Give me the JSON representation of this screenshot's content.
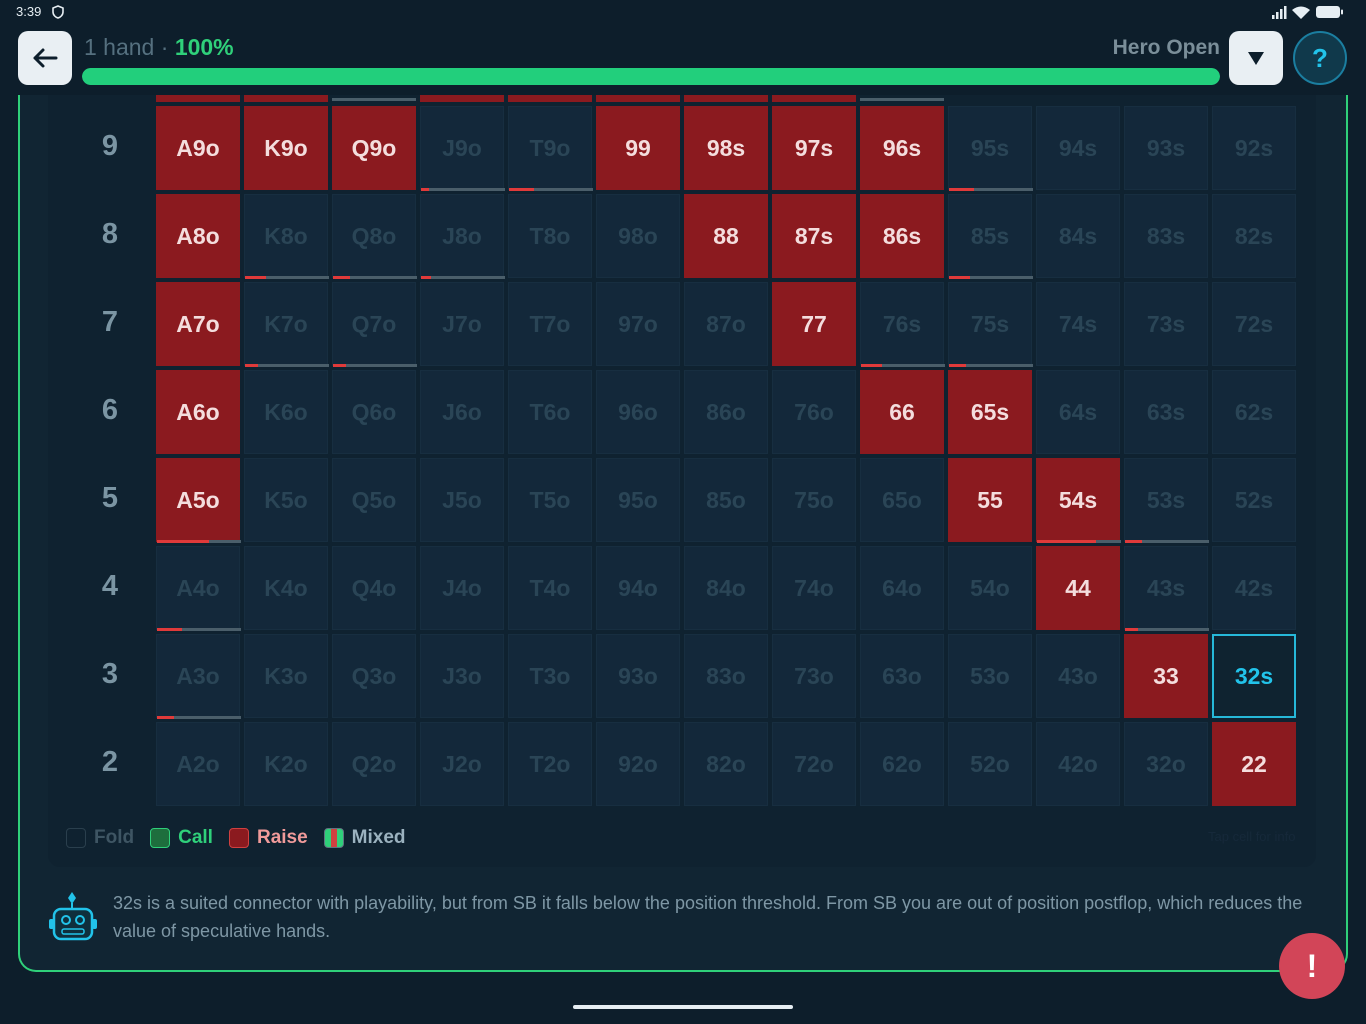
{
  "status_bar": {
    "time": "3:39",
    "icons": [
      "shield-icon",
      "signal-icon",
      "wifi-icon",
      "battery-icon"
    ]
  },
  "header": {
    "hand_count": "1 hand",
    "separator": " · ",
    "progress_label": "100%",
    "progress_value": 1.0,
    "mode": "Hero Open",
    "help_label": "?"
  },
  "grid": {
    "row_labels": [
      "9",
      "8",
      "7",
      "6",
      "5",
      "4",
      "3",
      "2"
    ],
    "rows": [
      [
        {
          "hand": "A9o",
          "action": "raise"
        },
        {
          "hand": "K9o",
          "action": "raise"
        },
        {
          "hand": "Q9o",
          "action": "raise"
        },
        {
          "hand": "J9o",
          "action": "fold",
          "mix": 0.1
        },
        {
          "hand": "T9o",
          "action": "fold",
          "mix": 0.3
        },
        {
          "hand": "99",
          "action": "raise"
        },
        {
          "hand": "98s",
          "action": "raise"
        },
        {
          "hand": "97s",
          "action": "raise"
        },
        {
          "hand": "96s",
          "action": "raise"
        },
        {
          "hand": "95s",
          "action": "fold",
          "mix": 0.3
        },
        {
          "hand": "94s",
          "action": "fold"
        },
        {
          "hand": "93s",
          "action": "fold"
        },
        {
          "hand": "92s",
          "action": "fold"
        }
      ],
      [
        {
          "hand": "A8o",
          "action": "raise"
        },
        {
          "hand": "K8o",
          "action": "fold",
          "mix": 0.25
        },
        {
          "hand": "Q8o",
          "action": "fold",
          "mix": 0.2
        },
        {
          "hand": "J8o",
          "action": "fold",
          "mix": 0.12
        },
        {
          "hand": "T8o",
          "action": "fold"
        },
        {
          "hand": "98o",
          "action": "fold"
        },
        {
          "hand": "88",
          "action": "raise"
        },
        {
          "hand": "87s",
          "action": "raise"
        },
        {
          "hand": "86s",
          "action": "raise"
        },
        {
          "hand": "85s",
          "action": "fold",
          "mix": 0.25
        },
        {
          "hand": "84s",
          "action": "fold"
        },
        {
          "hand": "83s",
          "action": "fold"
        },
        {
          "hand": "82s",
          "action": "fold"
        }
      ],
      [
        {
          "hand": "A7o",
          "action": "raise"
        },
        {
          "hand": "K7o",
          "action": "fold",
          "mix": 0.15
        },
        {
          "hand": "Q7o",
          "action": "fold",
          "mix": 0.15
        },
        {
          "hand": "J7o",
          "action": "fold"
        },
        {
          "hand": "T7o",
          "action": "fold"
        },
        {
          "hand": "97o",
          "action": "fold"
        },
        {
          "hand": "87o",
          "action": "fold"
        },
        {
          "hand": "77",
          "action": "raise"
        },
        {
          "hand": "76s",
          "action": "fold",
          "mix": 0.25
        },
        {
          "hand": "75s",
          "action": "fold",
          "mix": 0.2
        },
        {
          "hand": "74s",
          "action": "fold"
        },
        {
          "hand": "73s",
          "action": "fold"
        },
        {
          "hand": "72s",
          "action": "fold"
        }
      ],
      [
        {
          "hand": "A6o",
          "action": "raise"
        },
        {
          "hand": "K6o",
          "action": "fold"
        },
        {
          "hand": "Q6o",
          "action": "fold"
        },
        {
          "hand": "J6o",
          "action": "fold"
        },
        {
          "hand": "T6o",
          "action": "fold"
        },
        {
          "hand": "96o",
          "action": "fold"
        },
        {
          "hand": "86o",
          "action": "fold"
        },
        {
          "hand": "76o",
          "action": "fold"
        },
        {
          "hand": "66",
          "action": "raise"
        },
        {
          "hand": "65s",
          "action": "raise"
        },
        {
          "hand": "64s",
          "action": "fold"
        },
        {
          "hand": "63s",
          "action": "fold"
        },
        {
          "hand": "62s",
          "action": "fold"
        }
      ],
      [
        {
          "hand": "A5o",
          "action": "raise",
          "mix": 0.62
        },
        {
          "hand": "K5o",
          "action": "fold"
        },
        {
          "hand": "Q5o",
          "action": "fold"
        },
        {
          "hand": "J5o",
          "action": "fold"
        },
        {
          "hand": "T5o",
          "action": "fold"
        },
        {
          "hand": "95o",
          "action": "fold"
        },
        {
          "hand": "85o",
          "action": "fold"
        },
        {
          "hand": "75o",
          "action": "fold"
        },
        {
          "hand": "65o",
          "action": "fold"
        },
        {
          "hand": "55",
          "action": "raise"
        },
        {
          "hand": "54s",
          "action": "raise",
          "mix": 0.7
        },
        {
          "hand": "53s",
          "action": "fold",
          "mix": 0.2
        },
        {
          "hand": "52s",
          "action": "fold"
        }
      ],
      [
        {
          "hand": "A4o",
          "action": "fold",
          "mix": 0.3
        },
        {
          "hand": "K4o",
          "action": "fold"
        },
        {
          "hand": "Q4o",
          "action": "fold"
        },
        {
          "hand": "J4o",
          "action": "fold"
        },
        {
          "hand": "T4o",
          "action": "fold"
        },
        {
          "hand": "94o",
          "action": "fold"
        },
        {
          "hand": "84o",
          "action": "fold"
        },
        {
          "hand": "74o",
          "action": "fold"
        },
        {
          "hand": "64o",
          "action": "fold"
        },
        {
          "hand": "54o",
          "action": "fold"
        },
        {
          "hand": "44",
          "action": "raise"
        },
        {
          "hand": "43s",
          "action": "fold",
          "mix": 0.15
        },
        {
          "hand": "42s",
          "action": "fold"
        }
      ],
      [
        {
          "hand": "A3o",
          "action": "fold",
          "mix": 0.2
        },
        {
          "hand": "K3o",
          "action": "fold"
        },
        {
          "hand": "Q3o",
          "action": "fold"
        },
        {
          "hand": "J3o",
          "action": "fold"
        },
        {
          "hand": "T3o",
          "action": "fold"
        },
        {
          "hand": "93o",
          "action": "fold"
        },
        {
          "hand": "83o",
          "action": "fold"
        },
        {
          "hand": "73o",
          "action": "fold"
        },
        {
          "hand": "63o",
          "action": "fold"
        },
        {
          "hand": "53o",
          "action": "fold"
        },
        {
          "hand": "43o",
          "action": "fold"
        },
        {
          "hand": "33",
          "action": "raise"
        },
        {
          "hand": "32s",
          "action": "fold",
          "selected": true
        }
      ],
      [
        {
          "hand": "A2o",
          "action": "fold"
        },
        {
          "hand": "K2o",
          "action": "fold"
        },
        {
          "hand": "Q2o",
          "action": "fold"
        },
        {
          "hand": "J2o",
          "action": "fold"
        },
        {
          "hand": "T2o",
          "action": "fold"
        },
        {
          "hand": "92o",
          "action": "fold"
        },
        {
          "hand": "82o",
          "action": "fold"
        },
        {
          "hand": "72o",
          "action": "fold"
        },
        {
          "hand": "62o",
          "action": "fold"
        },
        {
          "hand": "52o",
          "action": "fold"
        },
        {
          "hand": "42o",
          "action": "fold"
        },
        {
          "hand": "32o",
          "action": "fold"
        },
        {
          "hand": "22",
          "action": "raise"
        }
      ]
    ],
    "top_partial_row": [
      "raise",
      "raise",
      "mixed",
      "raise",
      "raise",
      "raise",
      "raise",
      "raise",
      "mixed"
    ]
  },
  "legend": {
    "fold": "Fold",
    "call": "Call",
    "raise": "Raise",
    "mixed": "Mixed",
    "hint": "Tap cell for info"
  },
  "explanation": {
    "text": "32s is a suited connector with playability, but from SB it falls below the position threshold. From SB you are out of position postflop, which reduces the value of speculative hands."
  },
  "alert": {
    "label": "!"
  },
  "colors": {
    "accent": "#2fd07a",
    "raise": "#8b1a1f",
    "selected": "#22c3ea",
    "alert": "#d24558"
  }
}
